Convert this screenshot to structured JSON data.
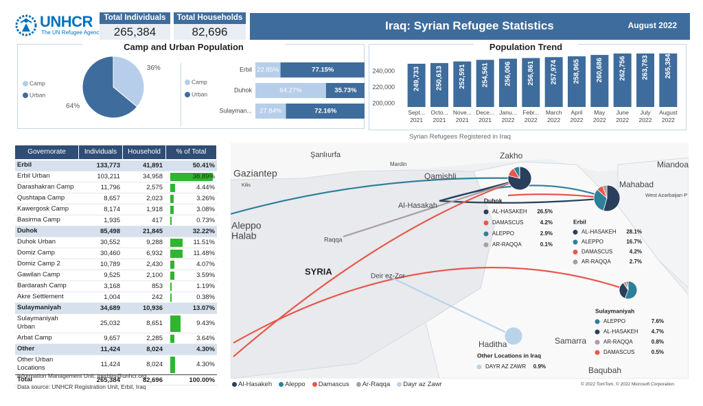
{
  "header": {
    "logo": "UNHCR",
    "logo_sub": "The UN Refugee Agency",
    "title": "Iraq: Syrian Refugee Statistics",
    "date": "August 2022"
  },
  "kpis": [
    {
      "label": "Total Individuals",
      "value": "265,384"
    },
    {
      "label": "Total Households",
      "value": "82,696"
    }
  ],
  "chart_data": [
    {
      "type": "pie",
      "title": "Camp and Urban Population",
      "categories": [
        "Camp",
        "Urban"
      ],
      "values": [
        36,
        64
      ],
      "value_labels": [
        "36%",
        "64%"
      ],
      "colors": [
        "#b6cee9",
        "#3e6c9c"
      ]
    },
    {
      "type": "stacked_bar",
      "categories": [
        "Erbil",
        "Duhok",
        "Sulayman..."
      ],
      "xlim": [
        0,
        100
      ],
      "series": [
        {
          "name": "Camp",
          "color": "#b6cee9",
          "values": [
            22.85,
            64.27,
            27.84
          ],
          "value_labels": [
            "22.85%",
            "64.27%",
            "27.84%"
          ]
        },
        {
          "name": "Urban",
          "color": "#3e6c9c",
          "values": [
            77.15,
            35.73,
            72.16
          ],
          "value_labels": [
            "77.15%",
            "35.73%",
            "72.16%"
          ]
        }
      ]
    },
    {
      "type": "bar",
      "title": "Population Trend",
      "color": "#3e6c9c",
      "categories": [
        "Sept... 2021",
        "Octo... 2021",
        "Nove... 2021",
        "Dece... 2021",
        "Janu... 2022",
        "Febr... 2022",
        "March 2022",
        "April 2022",
        "May 2022",
        "June 2022",
        "July 2022",
        "August 2022"
      ],
      "values": [
        249733,
        250613,
        252591,
        254561,
        256006,
        256861,
        257974,
        258965,
        260686,
        262756,
        263783,
        265384
      ],
      "value_labels": [
        "249,733",
        "250,613",
        "252,591",
        "254,561",
        "256,006",
        "256,861",
        "257,974",
        "258,965",
        "260,686",
        "262,756",
        "263,783",
        "265,384"
      ],
      "ylim": [
        196000,
        271000
      ],
      "yticks": [
        {
          "value": 200000,
          "label": "200,000"
        },
        {
          "value": 220000,
          "label": "220,000"
        },
        {
          "value": 240000,
          "label": "240,000"
        }
      ]
    }
  ],
  "table": {
    "columns": [
      "Governorate",
      "Individuals",
      "Household",
      "% of Total"
    ],
    "groups": [
      {
        "name": "Erbil",
        "individuals": "133,773",
        "households": "41,891",
        "pct": {
          "value": 50.41,
          "label": "50.41%"
        },
        "rows": [
          {
            "name": "Erbil Urban",
            "individuals": "103,211",
            "households": "34,958",
            "pct": {
              "value": 38.89,
              "label": "38.89%"
            }
          },
          {
            "name": "Darashakran Camp",
            "individuals": "11,796",
            "households": "2,575",
            "pct": {
              "value": 4.44,
              "label": "4.44%"
            }
          },
          {
            "name": "Qushtapa Camp",
            "individuals": "8,657",
            "households": "2,023",
            "pct": {
              "value": 3.26,
              "label": "3.26%"
            }
          },
          {
            "name": "Kawergosk Camp",
            "individuals": "8,174",
            "households": "1,918",
            "pct": {
              "value": 3.08,
              "label": "3.08%"
            }
          },
          {
            "name": "Basirma Camp",
            "individuals": "1,935",
            "households": "417",
            "pct": {
              "value": 0.73,
              "label": "0.73%"
            }
          }
        ]
      },
      {
        "name": "Duhok",
        "individuals": "85,498",
        "households": "21,845",
        "pct": {
          "value": 32.22,
          "label": "32.22%"
        },
        "rows": [
          {
            "name": "Duhok Urban",
            "individuals": "30,552",
            "households": "9,288",
            "pct": {
              "value": 11.51,
              "label": "11.51%"
            }
          },
          {
            "name": "Domiz Camp",
            "individuals": "30,460",
            "households": "6,932",
            "pct": {
              "value": 11.48,
              "label": "11.48%"
            }
          },
          {
            "name": "Domiz Camp 2",
            "individuals": "10,789",
            "households": "2,430",
            "pct": {
              "value": 4.07,
              "label": "4.07%"
            }
          },
          {
            "name": "Gawilan Camp",
            "individuals": "9,525",
            "households": "2,100",
            "pct": {
              "value": 3.59,
              "label": "3.59%"
            }
          },
          {
            "name": "Bardarash Camp",
            "individuals": "3,168",
            "households": "853",
            "pct": {
              "value": 1.19,
              "label": "1.19%"
            }
          },
          {
            "name": "Akre Settlement",
            "individuals": "1,004",
            "households": "242",
            "pct": {
              "value": 0.38,
              "label": "0.38%"
            }
          }
        ]
      },
      {
        "name": "Sulaymaniyah",
        "individuals": "34,689",
        "households": "10,936",
        "pct": {
          "value": 13.07,
          "label": "13.07%"
        },
        "rows": [
          {
            "name": "Sulaymaniyah Urban",
            "individuals": "25,032",
            "households": "8,651",
            "pct": {
              "value": 9.43,
              "label": "9.43%"
            }
          },
          {
            "name": "Arbat Camp",
            "individuals": "9,657",
            "households": "2,285",
            "pct": {
              "value": 3.64,
              "label": "3.64%"
            }
          }
        ]
      },
      {
        "name": "Other",
        "individuals": "11,424",
        "households": "8,024",
        "pct": {
          "value": 4.3,
          "label": "4.30%"
        },
        "rows": [
          {
            "name": "Other Urban Locations",
            "individuals": "11,424",
            "households": "8,024",
            "pct": {
              "value": 4.3,
              "label": "4.30%"
            }
          }
        ]
      }
    ],
    "total": {
      "name": "Total",
      "individuals": "265,384",
      "households": "82,696",
      "pct": {
        "value": 100,
        "label": "100.00%"
      }
    }
  },
  "map": {
    "title": "Syrian Refugees Registered in Iraq",
    "places": [
      "Şanlıurfa",
      "Gaziantep",
      "Kilis",
      "Mardin",
      "Qamishli",
      "Zakho",
      "Miandoab",
      "Mahabad",
      "West Azarbaijan P",
      "Al-Hasakah",
      "Raqqa",
      "Aleppo",
      "Halab",
      "SYRIA",
      "Deir ez-Zor",
      "Haditha",
      "Samarra",
      "Baqubah"
    ],
    "callouts": [
      {
        "title": "Duhok",
        "items": [
          {
            "name": "AL-HASAKEH",
            "color": "#2b3f5c",
            "value": 26.5,
            "label": "26.5%"
          },
          {
            "name": "DAMASCUS",
            "color": "#e8574b",
            "value": 4.2,
            "label": "4.2%"
          },
          {
            "name": "ALEPPO",
            "color": "#2e7f99",
            "value": 2.9,
            "label": "2.9%"
          },
          {
            "name": "AR-RAQQA",
            "color": "#a99ea1",
            "value": 0.1,
            "label": "0.1%"
          }
        ]
      },
      {
        "title": "Erbil",
        "items": [
          {
            "name": "AL-HASAKEH",
            "color": "#2b3f5c",
            "value": 28.1,
            "label": "28.1%"
          },
          {
            "name": "ALEPPO",
            "color": "#2e7f99",
            "value": 16.7,
            "label": "16.7%"
          },
          {
            "name": "DAMASCUS",
            "color": "#e8574b",
            "value": 4.2,
            "label": "4.2%"
          },
          {
            "name": "AR-RAQQA",
            "color": "#a99ea1",
            "value": 2.7,
            "label": "2.7%"
          }
        ]
      },
      {
        "title": "Sulaymaniyah",
        "items": [
          {
            "name": "ALEPPO",
            "color": "#2e7f99",
            "value": 7.6,
            "label": "7.6%"
          },
          {
            "name": "AL-HASAKEH",
            "color": "#2b3f5c",
            "value": 4.7,
            "label": "4.7%"
          },
          {
            "name": "AR-RAQQA",
            "color": "#a99ea1",
            "value": 0.8,
            "label": "0.8%"
          },
          {
            "name": "DAMASCUS",
            "color": "#e8574b",
            "value": 0.5,
            "label": "0.5%"
          }
        ]
      },
      {
        "title": "Other Locations in Iraq",
        "items": [
          {
            "name": "DAYR AZ ZAWR",
            "color": "#b9d3ea",
            "value": 0.9,
            "label": "0.9%"
          }
        ]
      }
    ],
    "legend": [
      {
        "name": "Al-Hasakeh",
        "color": "#2b3f5c"
      },
      {
        "name": "Aleppo",
        "color": "#2e7f99"
      },
      {
        "name": "Damascus",
        "color": "#e8574b"
      },
      {
        "name": "Ar-Raqqa",
        "color": "#a99ea1"
      },
      {
        "name": "Dayr az Zawr",
        "color": "#b9d3ea"
      }
    ],
    "copyright": "© 2022 TomTom, © 2022 Microsoft Corporation"
  },
  "footer": {
    "contact": "Information Management Unit: iqerbim@unhcr.org",
    "source": "Data source: UNHCR Registration Unit, Erbil, Iraq"
  }
}
